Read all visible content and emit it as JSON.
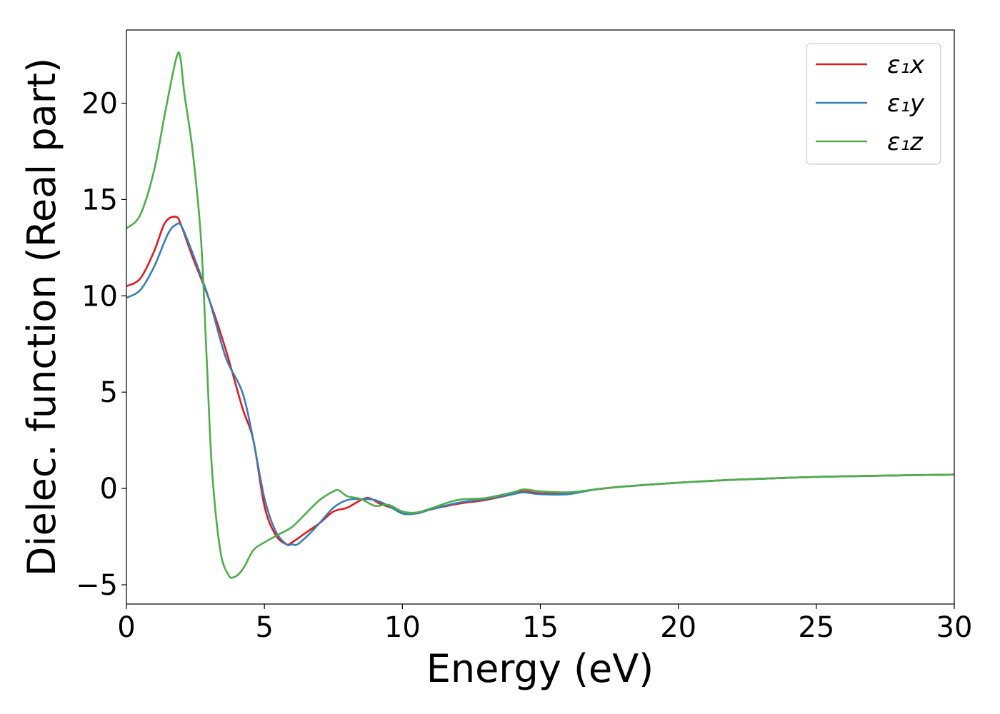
{
  "chart_data": {
    "type": "line",
    "xlabel": "Energy (eV)",
    "ylabel": "Dielec. function (Real part)",
    "xlim": [
      0,
      30
    ],
    "ylim": [
      -6,
      23.8
    ],
    "xticks": [
      0,
      5,
      10,
      15,
      20,
      25,
      30
    ],
    "yticks": [
      -5,
      0,
      5,
      10,
      15,
      20
    ],
    "xtick_labels": [
      "0",
      "5",
      "10",
      "15",
      "20",
      "25",
      "30"
    ],
    "ytick_labels": [
      "−5",
      "0",
      "5",
      "10",
      "15",
      "20"
    ],
    "grid": false,
    "legend_position": "top-right",
    "series": [
      {
        "name": "ε₁x",
        "color": "#e41a1c",
        "x": [
          0,
          0.5,
          1.0,
          1.4,
          1.8,
          2.0,
          2.4,
          3.0,
          3.6,
          4.2,
          4.6,
          5.0,
          5.4,
          5.8,
          6.0,
          6.5,
          7.0,
          7.5,
          8.0,
          8.5,
          8.8,
          9.2,
          9.6,
          10.0,
          10.5,
          11.0,
          12.0,
          13.0,
          14.0,
          14.4,
          15.0,
          16.0,
          17.0,
          18.0,
          20.0,
          22.0,
          25.0,
          28.0,
          30.0
        ],
        "y": [
          10.5,
          10.9,
          12.3,
          13.8,
          14.1,
          13.6,
          12.0,
          9.8,
          7.2,
          4.2,
          2.5,
          -0.9,
          -2.4,
          -2.9,
          -2.8,
          -2.3,
          -1.8,
          -1.2,
          -1.0,
          -0.6,
          -0.5,
          -0.8,
          -1.0,
          -1.2,
          -1.3,
          -1.1,
          -0.8,
          -0.6,
          -0.3,
          -0.15,
          -0.25,
          -0.25,
          -0.05,
          0.1,
          0.3,
          0.45,
          0.6,
          0.68,
          0.72
        ]
      },
      {
        "name": "ε₁y",
        "color": "#377eb8",
        "x": [
          0,
          0.5,
          1.0,
          1.5,
          1.8,
          2.0,
          2.4,
          3.0,
          3.6,
          4.2,
          4.6,
          5.0,
          5.4,
          5.8,
          6.0,
          6.2,
          6.6,
          7.0,
          7.5,
          8.0,
          8.5,
          9.0,
          9.5,
          10.0,
          10.5,
          11.0,
          12.0,
          13.0,
          14.0,
          14.4,
          15.0,
          16.0,
          17.0,
          18.0,
          20.0,
          22.0,
          25.0,
          28.0,
          30.0
        ],
        "y": [
          9.9,
          10.3,
          11.5,
          13.2,
          13.7,
          13.6,
          12.2,
          9.8,
          6.8,
          5.0,
          2.5,
          -0.5,
          -2.2,
          -2.9,
          -2.9,
          -2.9,
          -2.4,
          -1.8,
          -1.0,
          -0.6,
          -0.55,
          -0.6,
          -0.9,
          -1.3,
          -1.3,
          -1.1,
          -0.75,
          -0.55,
          -0.3,
          -0.2,
          -0.3,
          -0.3,
          -0.05,
          0.1,
          0.3,
          0.45,
          0.6,
          0.68,
          0.72
        ]
      },
      {
        "name": "ε₁z",
        "color": "#4daf4a",
        "x": [
          0,
          0.5,
          1.0,
          1.4,
          1.8,
          1.95,
          2.1,
          2.4,
          2.7,
          2.9,
          3.1,
          3.4,
          3.7,
          3.9,
          4.1,
          4.3,
          4.6,
          5.0,
          5.5,
          6.0,
          6.5,
          7.0,
          7.5,
          7.7,
          8.0,
          8.5,
          9.0,
          9.5,
          10.0,
          10.5,
          11.0,
          12.0,
          13.0,
          14.0,
          14.4,
          15.0,
          16.0,
          17.0,
          18.0,
          20.0,
          22.0,
          25.0,
          28.0,
          30.0
        ],
        "y": [
          13.5,
          14.2,
          16.5,
          19.5,
          22.3,
          22.4,
          20.5,
          17.5,
          13.0,
          7.0,
          1.0,
          -3.2,
          -4.5,
          -4.6,
          -4.4,
          -4.0,
          -3.2,
          -2.8,
          -2.4,
          -2.0,
          -1.3,
          -0.6,
          -0.15,
          -0.1,
          -0.4,
          -0.55,
          -0.9,
          -0.85,
          -1.2,
          -1.25,
          -1.05,
          -0.6,
          -0.5,
          -0.2,
          -0.05,
          -0.15,
          -0.2,
          -0.05,
          0.1,
          0.3,
          0.45,
          0.6,
          0.68,
          0.72
        ]
      }
    ]
  }
}
